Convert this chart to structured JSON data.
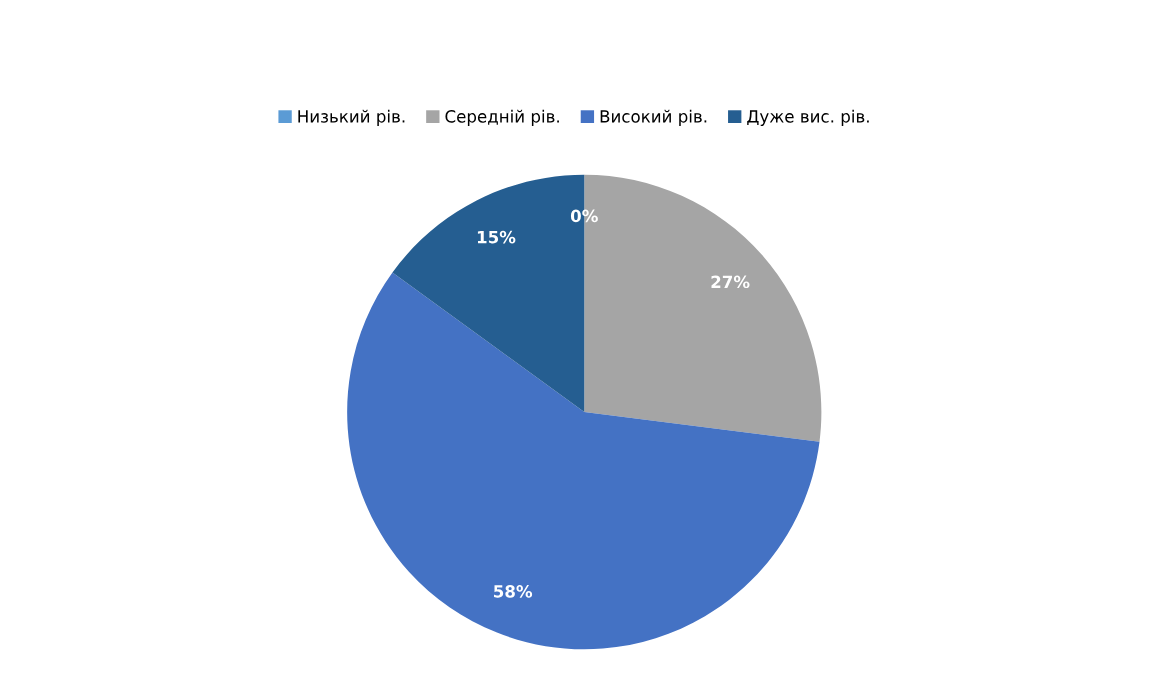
{
  "chart_data": {
    "type": "pie",
    "categories": [
      "Низький рів.",
      "Середній рів.",
      "Високий рів.",
      "Дуже вис. рів."
    ],
    "values": [
      0,
      27,
      58,
      15
    ],
    "colors": [
      "#5b9bd5",
      "#a5a5a5",
      "#4472c4",
      "#255e91"
    ],
    "value_labels": [
      "0%",
      "27%",
      "58%",
      "15%"
    ],
    "legend": "top"
  }
}
